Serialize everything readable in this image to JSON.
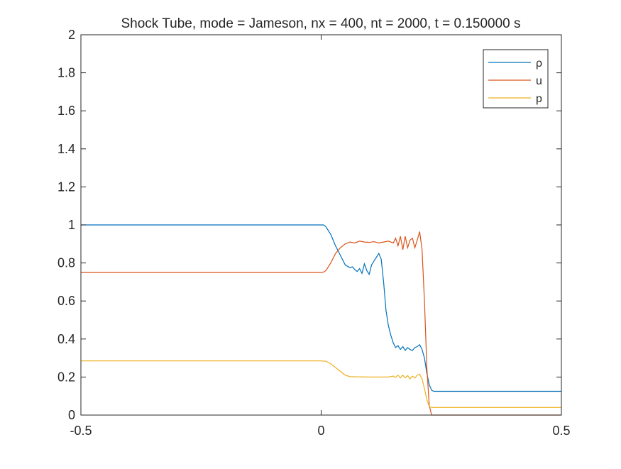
{
  "chart_data": {
    "type": "line",
    "title": "Shock Tube, mode = Jameson, nx = 400, nt = 2000, t = 0.150000 s",
    "xlabel": "",
    "ylabel": "",
    "xlim": [
      -0.5,
      0.5
    ],
    "ylim": [
      0,
      2
    ],
    "xticks": [
      "-0.5",
      "0",
      "0.5"
    ],
    "yticks": [
      "0",
      "0.2",
      "0.4",
      "0.6",
      "0.8",
      "1",
      "1.2",
      "1.4",
      "1.6",
      "1.8",
      "2"
    ],
    "grid": false,
    "legend_position": "top-right",
    "series": [
      {
        "name": "ρ",
        "color": "#0072BD",
        "points": [
          [
            -0.5,
            1.0
          ],
          [
            0.0,
            1.0
          ],
          [
            0.005,
            1.0
          ],
          [
            0.01,
            0.99
          ],
          [
            0.02,
            0.95
          ],
          [
            0.03,
            0.89
          ],
          [
            0.04,
            0.84
          ],
          [
            0.05,
            0.79
          ],
          [
            0.06,
            0.775
          ],
          [
            0.065,
            0.78
          ],
          [
            0.07,
            0.765
          ],
          [
            0.075,
            0.755
          ],
          [
            0.08,
            0.77
          ],
          [
            0.085,
            0.745
          ],
          [
            0.09,
            0.795
          ],
          [
            0.095,
            0.76
          ],
          [
            0.1,
            0.74
          ],
          [
            0.105,
            0.79
          ],
          [
            0.11,
            0.81
          ],
          [
            0.115,
            0.83
          ],
          [
            0.12,
            0.85
          ],
          [
            0.125,
            0.82
          ],
          [
            0.13,
            0.7
          ],
          [
            0.135,
            0.55
          ],
          [
            0.14,
            0.47
          ],
          [
            0.145,
            0.42
          ],
          [
            0.15,
            0.38
          ],
          [
            0.155,
            0.355
          ],
          [
            0.16,
            0.365
          ],
          [
            0.165,
            0.345
          ],
          [
            0.17,
            0.36
          ],
          [
            0.175,
            0.34
          ],
          [
            0.18,
            0.355
          ],
          [
            0.185,
            0.345
          ],
          [
            0.19,
            0.34
          ],
          [
            0.195,
            0.355
          ],
          [
            0.2,
            0.36
          ],
          [
            0.205,
            0.37
          ],
          [
            0.21,
            0.345
          ],
          [
            0.215,
            0.3
          ],
          [
            0.22,
            0.22
          ],
          [
            0.225,
            0.16
          ],
          [
            0.23,
            0.13
          ],
          [
            0.235,
            0.125
          ],
          [
            0.5,
            0.125
          ]
        ]
      },
      {
        "name": "u",
        "color": "#D95319",
        "points": [
          [
            -0.5,
            0.75
          ],
          [
            0.0,
            0.75
          ],
          [
            0.005,
            0.752
          ],
          [
            0.01,
            0.76
          ],
          [
            0.02,
            0.8
          ],
          [
            0.03,
            0.85
          ],
          [
            0.04,
            0.88
          ],
          [
            0.05,
            0.9
          ],
          [
            0.06,
            0.91
          ],
          [
            0.07,
            0.905
          ],
          [
            0.08,
            0.915
          ],
          [
            0.09,
            0.91
          ],
          [
            0.1,
            0.908
          ],
          [
            0.11,
            0.912
          ],
          [
            0.12,
            0.905
          ],
          [
            0.13,
            0.91
          ],
          [
            0.14,
            0.915
          ],
          [
            0.15,
            0.905
          ],
          [
            0.155,
            0.93
          ],
          [
            0.16,
            0.89
          ],
          [
            0.165,
            0.94
          ],
          [
            0.17,
            0.87
          ],
          [
            0.175,
            0.94
          ],
          [
            0.18,
            0.88
          ],
          [
            0.185,
            0.92
          ],
          [
            0.19,
            0.93
          ],
          [
            0.195,
            0.88
          ],
          [
            0.2,
            0.92
          ],
          [
            0.205,
            0.965
          ],
          [
            0.21,
            0.87
          ],
          [
            0.215,
            0.6
          ],
          [
            0.22,
            0.25
          ],
          [
            0.225,
            0.05
          ],
          [
            0.23,
            0.0
          ],
          [
            0.5,
            0.0
          ]
        ]
      },
      {
        "name": "p",
        "color": "#EDB120",
        "points": [
          [
            -0.5,
            0.285
          ],
          [
            0.0,
            0.285
          ],
          [
            0.01,
            0.283
          ],
          [
            0.02,
            0.27
          ],
          [
            0.03,
            0.25
          ],
          [
            0.04,
            0.23
          ],
          [
            0.05,
            0.21
          ],
          [
            0.06,
            0.202
          ],
          [
            0.1,
            0.2
          ],
          [
            0.14,
            0.2
          ],
          [
            0.15,
            0.205
          ],
          [
            0.155,
            0.198
          ],
          [
            0.16,
            0.21
          ],
          [
            0.165,
            0.195
          ],
          [
            0.17,
            0.21
          ],
          [
            0.175,
            0.196
          ],
          [
            0.18,
            0.208
          ],
          [
            0.185,
            0.19
          ],
          [
            0.19,
            0.205
          ],
          [
            0.195,
            0.195
          ],
          [
            0.2,
            0.21
          ],
          [
            0.205,
            0.215
          ],
          [
            0.21,
            0.19
          ],
          [
            0.215,
            0.14
          ],
          [
            0.22,
            0.08
          ],
          [
            0.225,
            0.045
          ],
          [
            0.23,
            0.04
          ],
          [
            0.5,
            0.04
          ]
        ]
      }
    ]
  }
}
